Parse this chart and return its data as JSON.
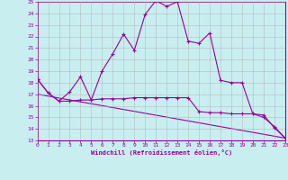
{
  "xlabel": "Windchill (Refroidissement éolien,°C)",
  "xlim": [
    0,
    23
  ],
  "ylim": [
    13,
    25
  ],
  "yticks": [
    13,
    14,
    15,
    16,
    17,
    18,
    19,
    20,
    21,
    22,
    23,
    24,
    25
  ],
  "xticks": [
    0,
    1,
    2,
    3,
    4,
    5,
    6,
    7,
    8,
    9,
    10,
    11,
    12,
    13,
    14,
    15,
    16,
    17,
    18,
    19,
    20,
    21,
    22,
    23
  ],
  "line_color": "#990099",
  "bg_color": "#c8eef0",
  "grid_color": "#b0b0b0",
  "line1_x": [
    0,
    1,
    2,
    3,
    4,
    5,
    6,
    7,
    8,
    9,
    10,
    11,
    12,
    13,
    14,
    15,
    16,
    17,
    18,
    19,
    20,
    21,
    22,
    23
  ],
  "line1_y": [
    18.3,
    17.1,
    16.4,
    16.4,
    16.5,
    16.5,
    16.6,
    16.6,
    16.6,
    16.7,
    16.7,
    16.7,
    16.7,
    16.7,
    16.7,
    15.5,
    15.4,
    15.4,
    15.3,
    15.3,
    15.3,
    15.2,
    14.1,
    13.2
  ],
  "line2_x": [
    0,
    1,
    2,
    3,
    4,
    5,
    6,
    7,
    8,
    9,
    10,
    11,
    12,
    13,
    14,
    15,
    16,
    17,
    18,
    19,
    20,
    21,
    22,
    23
  ],
  "line2_y": [
    18.3,
    17.1,
    16.4,
    17.2,
    18.5,
    16.5,
    19.0,
    20.5,
    22.2,
    20.8,
    23.9,
    25.1,
    24.6,
    25.0,
    21.6,
    21.4,
    22.3,
    18.2,
    18.0,
    18.0,
    15.3,
    15.0,
    14.2,
    13.2
  ],
  "line3_x": [
    0,
    23
  ],
  "line3_y": [
    17.0,
    13.2
  ]
}
